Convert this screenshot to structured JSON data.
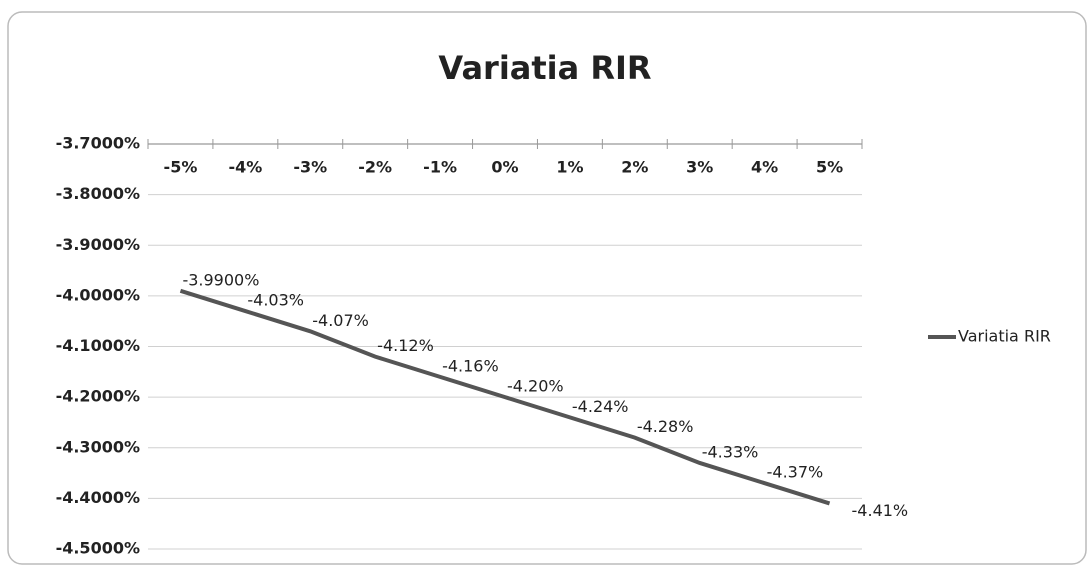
{
  "chart_data": {
    "type": "line",
    "title": "Variatia RIR",
    "categories": [
      "-5%",
      "-4%",
      "-3%",
      "-2%",
      "-1%",
      "0%",
      "1%",
      "2%",
      "3%",
      "4%",
      "5%"
    ],
    "series": [
      {
        "name": "Variatia RIR",
        "color": "#555555",
        "values": [
          -3.99,
          -4.03,
          -4.07,
          -4.12,
          -4.16,
          -4.2,
          -4.24,
          -4.28,
          -4.33,
          -4.37,
          -4.41
        ],
        "value_labels": [
          "-3.9900%",
          "-4.03%",
          "-4.07%",
          "-4.12%",
          "-4.16%",
          "-4.20%",
          "-4.24%",
          "-4.28%",
          "-4.33%",
          "-4.37%",
          "-4.41%"
        ]
      }
    ],
    "ylim": [
      -4.5,
      -3.7
    ],
    "yticks": [
      {
        "value": -3.7,
        "label": "-3.7000%"
      },
      {
        "value": -3.8,
        "label": "-3.8000%"
      },
      {
        "value": -3.9,
        "label": "-3.9000%"
      },
      {
        "value": -4.0,
        "label": "-4.0000%"
      },
      {
        "value": -4.1,
        "label": "-4.1000%"
      },
      {
        "value": -4.2,
        "label": "-4.2000%"
      },
      {
        "value": -4.3,
        "label": "-4.3000%"
      },
      {
        "value": -4.4,
        "label": "-4.4000%"
      },
      {
        "value": -4.5,
        "label": "-4.5000%"
      }
    ],
    "grid": true,
    "legend": "right"
  }
}
